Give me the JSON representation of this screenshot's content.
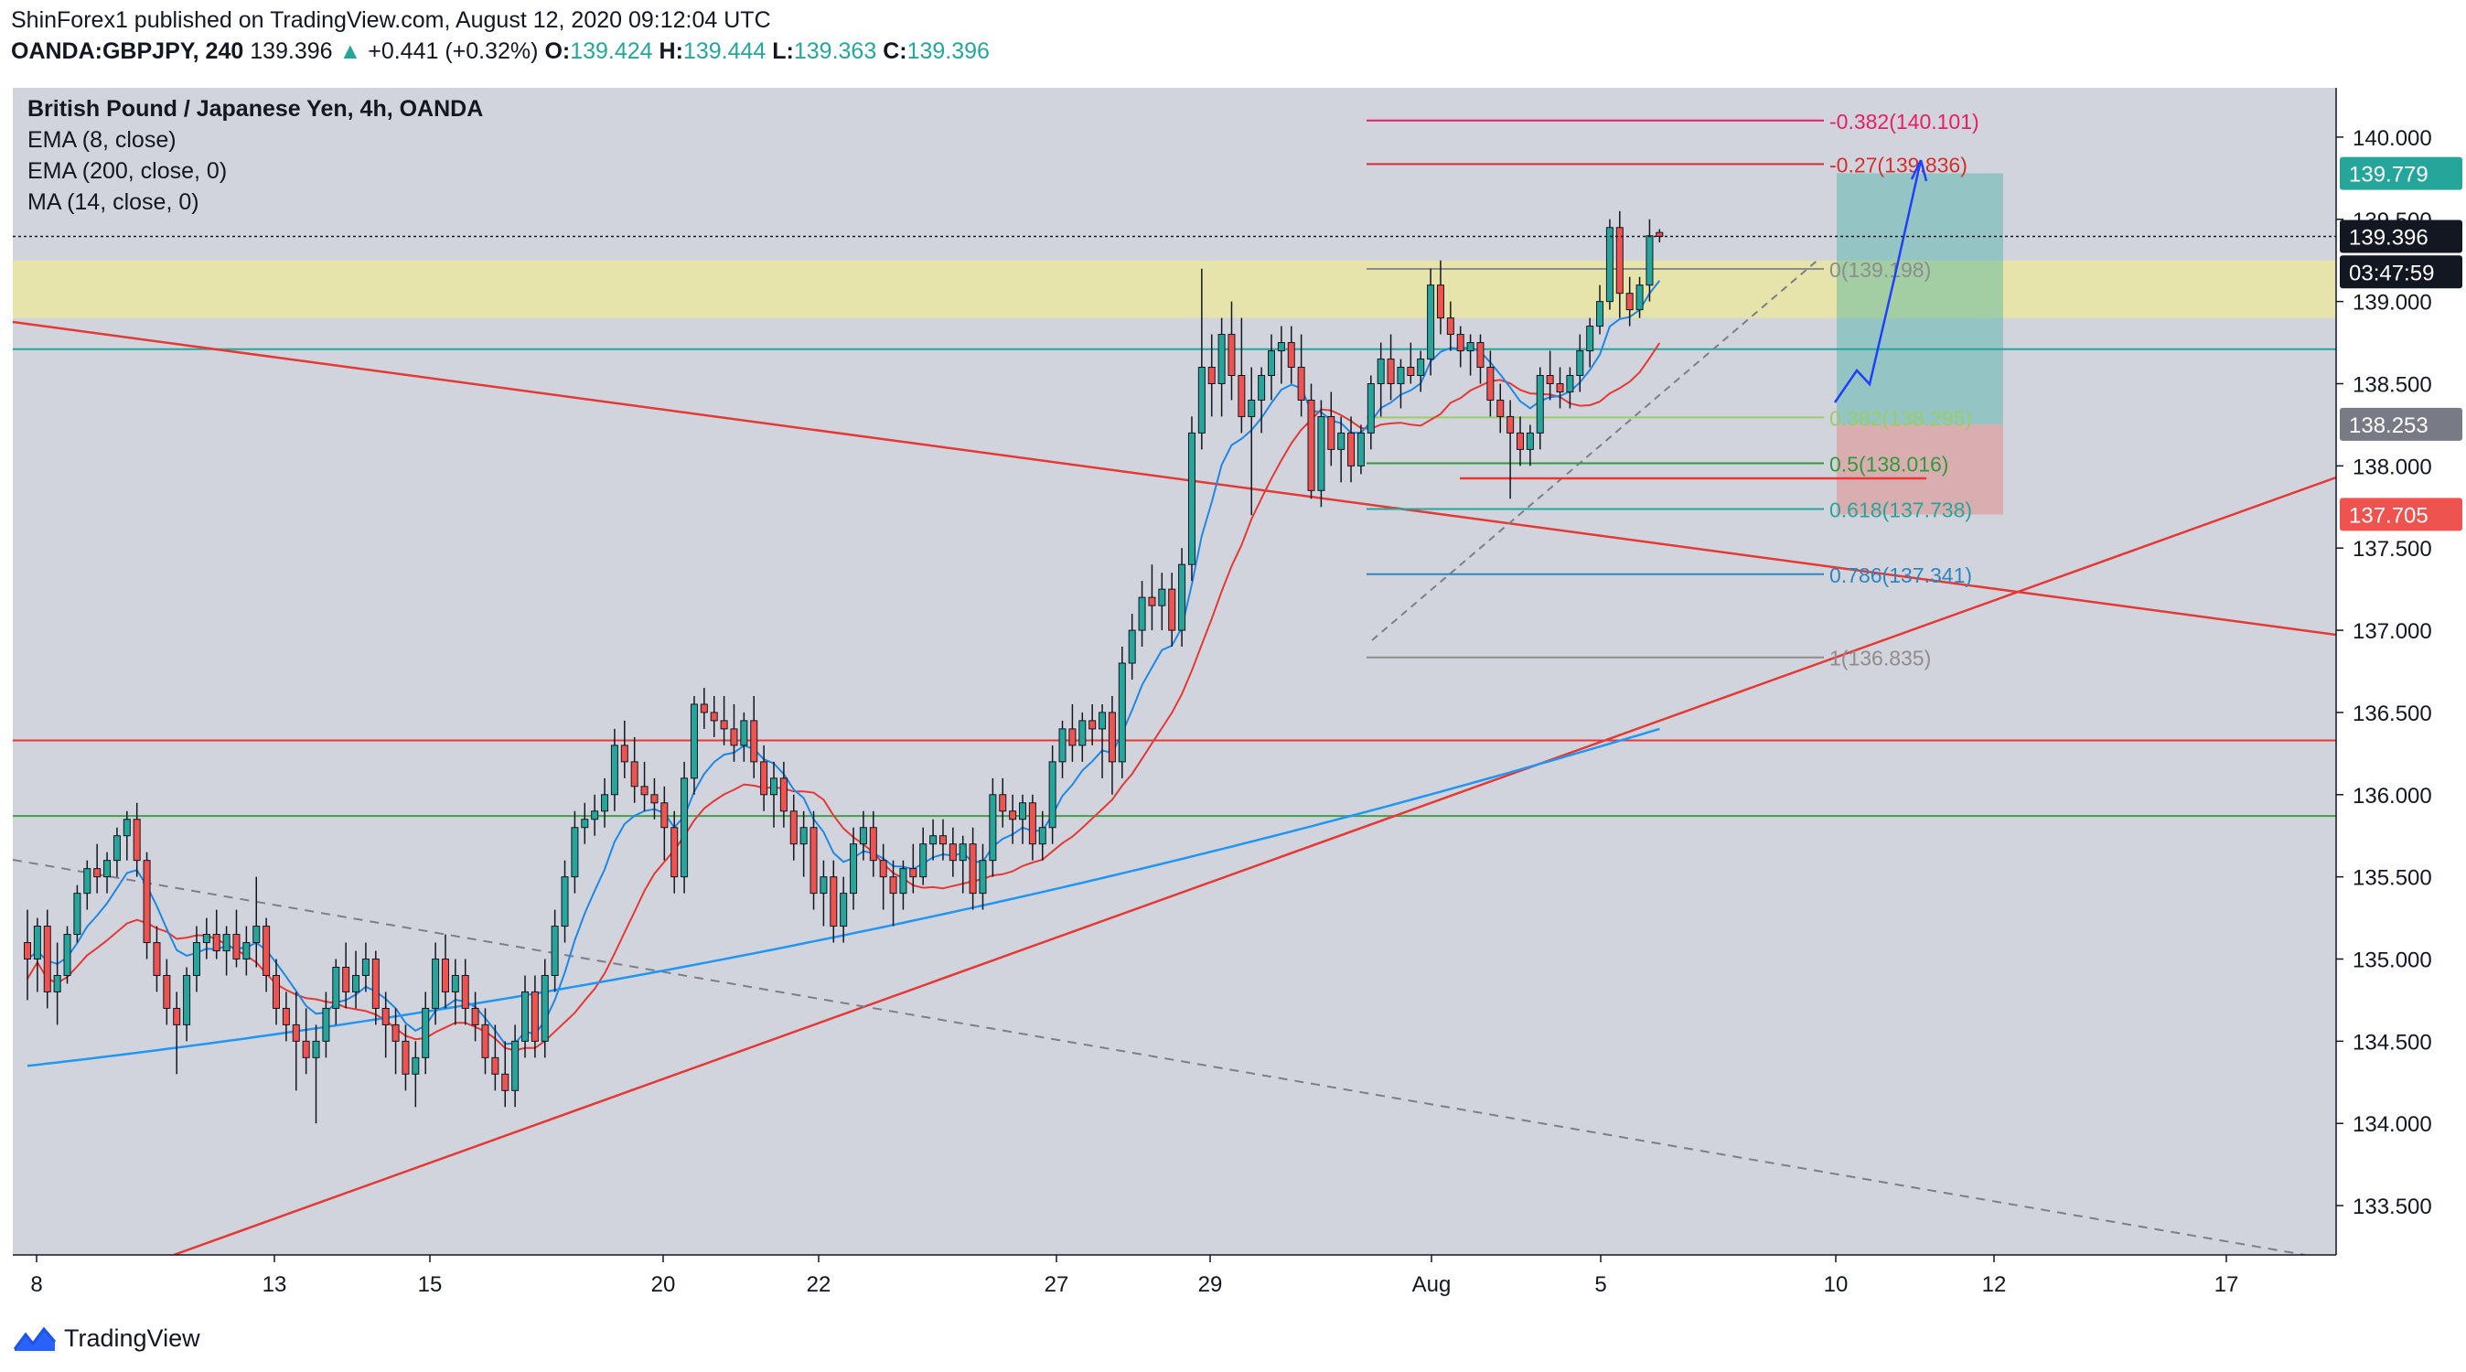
{
  "header": {
    "published": "ShinForex1 published on TradingView.com, August 12, 2020 09:12:04 UTC",
    "symbol": "OANDA:GBPJPY, 240",
    "price": "139.396",
    "change_arrow": "▲",
    "change": "+0.441 (+0.32%)",
    "o_label": "O:",
    "o": "139.424",
    "h_label": "H:",
    "h": "139.444",
    "l_label": "L:",
    "l": "139.363",
    "c_label": "C:",
    "c": "139.396"
  },
  "legend": {
    "title": "British Pound / Japanese Yen, 4h, OANDA",
    "ind1": "EMA (8, close)",
    "ind2": "EMA (200, close, 0)",
    "ind3": "MA (14, close, 0)"
  },
  "footer": {
    "brand": "TradingView",
    "logo_icon": "tradingview-logo-icon"
  },
  "colors": {
    "up": "#26a69a",
    "down": "#ef5350",
    "bg": "#d1d4dc",
    "zone": "#e8e6a4"
  },
  "chart_data": {
    "type": "candlestick",
    "y_range": [
      133.2,
      140.3
    ],
    "y_ticks": [
      "140.000",
      "139.500",
      "139.000",
      "138.500",
      "138.000",
      "137.500",
      "137.000",
      "136.500",
      "136.000",
      "135.500",
      "135.000",
      "134.500",
      "134.000",
      "133.500"
    ],
    "x_ticks": [
      "8",
      "13",
      "15",
      "20",
      "22",
      "27",
      "29",
      "Aug",
      "5",
      "10",
      "12",
      "17"
    ],
    "price_labels": [
      {
        "text": "139.779",
        "value": 139.779,
        "color": "#26a69a"
      },
      {
        "text": "139.396",
        "value": 139.396,
        "color": "#131722"
      },
      {
        "text": "03:47:59",
        "value": 139.18,
        "color": "#131722"
      },
      {
        "text": "138.253",
        "value": 138.253,
        "color": "#787b86"
      },
      {
        "text": "137.705",
        "value": 137.705,
        "color": "#ef5350"
      }
    ],
    "fib_levels": [
      {
        "text": "-0.382(140.101)",
        "value": 140.101,
        "color": "#e91e63"
      },
      {
        "text": "-0.27(139.836)",
        "value": 139.836,
        "color": "#d32f2f"
      },
      {
        "text": "0(139.198)",
        "value": 139.198,
        "color": "#8d8d8d"
      },
      {
        "text": "0.382(138.295)",
        "value": 138.295,
        "color": "#9ccc65"
      },
      {
        "text": "0.5(138.016)",
        "value": 138.016,
        "color": "#2e9c3a"
      },
      {
        "text": "0.618(137.738)",
        "value": 137.738,
        "color": "#26a69a"
      },
      {
        "text": "0.786(137.341)",
        "value": 137.341,
        "color": "#2e86c1"
      },
      {
        "text": "1(136.835)",
        "value": 136.835,
        "color": "#8d8d8d"
      }
    ],
    "resistance_zone": [
      138.9,
      139.25
    ],
    "horizontal_lines": [
      {
        "value": 138.71,
        "color": "#26a69a"
      },
      {
        "value": 136.33,
        "color": "#e53935"
      },
      {
        "value": 135.87,
        "color": "#43a047"
      }
    ],
    "candles_ohlc": [
      [
        135.1,
        135.3,
        134.75,
        135.0
      ],
      [
        135.0,
        135.25,
        134.8,
        135.2
      ],
      [
        135.2,
        135.3,
        134.7,
        134.8
      ],
      [
        134.8,
        135.1,
        134.6,
        134.9
      ],
      [
        134.9,
        135.2,
        134.85,
        135.15
      ],
      [
        135.15,
        135.45,
        135.1,
        135.4
      ],
      [
        135.4,
        135.6,
        135.3,
        135.55
      ],
      [
        135.55,
        135.7,
        135.4,
        135.5
      ],
      [
        135.5,
        135.65,
        135.4,
        135.6
      ],
      [
        135.6,
        135.8,
        135.5,
        135.75
      ],
      [
        135.75,
        135.9,
        135.6,
        135.85
      ],
      [
        135.85,
        135.95,
        135.5,
        135.6
      ],
      [
        135.6,
        135.65,
        135.0,
        135.1
      ],
      [
        135.1,
        135.2,
        134.8,
        134.9
      ],
      [
        134.9,
        135.0,
        134.6,
        134.7
      ],
      [
        134.7,
        134.8,
        134.3,
        134.6
      ],
      [
        134.6,
        134.95,
        134.5,
        134.9
      ],
      [
        134.9,
        135.2,
        134.8,
        135.1
      ],
      [
        135.1,
        135.25,
        135.0,
        135.15
      ],
      [
        135.15,
        135.3,
        135.0,
        135.05
      ],
      [
        135.05,
        135.2,
        134.9,
        135.15
      ],
      [
        135.15,
        135.3,
        134.95,
        135.0
      ],
      [
        135.0,
        135.2,
        134.9,
        135.1
      ],
      [
        135.1,
        135.5,
        134.95,
        135.2
      ],
      [
        135.2,
        135.25,
        134.8,
        134.9
      ],
      [
        134.9,
        135.0,
        134.6,
        134.7
      ],
      [
        134.7,
        134.8,
        134.5,
        134.6
      ],
      [
        134.6,
        134.8,
        134.2,
        134.5
      ],
      [
        134.5,
        134.7,
        134.3,
        134.4
      ],
      [
        134.4,
        134.6,
        134.0,
        134.5
      ],
      [
        134.5,
        134.8,
        134.4,
        134.7
      ],
      [
        134.7,
        135.0,
        134.6,
        134.95
      ],
      [
        134.95,
        135.1,
        134.7,
        134.8
      ],
      [
        134.8,
        135.05,
        134.7,
        134.9
      ],
      [
        134.9,
        135.1,
        134.8,
        135.0
      ],
      [
        135.0,
        135.05,
        134.6,
        134.7
      ],
      [
        134.7,
        134.8,
        134.4,
        134.6
      ],
      [
        134.6,
        134.7,
        134.3,
        134.5
      ],
      [
        134.5,
        134.6,
        134.2,
        134.3
      ],
      [
        134.3,
        134.5,
        134.1,
        134.4
      ],
      [
        134.4,
        134.8,
        134.3,
        134.7
      ],
      [
        134.7,
        135.1,
        134.6,
        135.0
      ],
      [
        135.0,
        135.15,
        134.7,
        134.8
      ],
      [
        134.8,
        135.0,
        134.6,
        134.9
      ],
      [
        134.9,
        135.0,
        134.6,
        134.7
      ],
      [
        134.7,
        134.8,
        134.5,
        134.6
      ],
      [
        134.6,
        134.7,
        134.3,
        134.4
      ],
      [
        134.4,
        134.6,
        134.2,
        134.3
      ],
      [
        134.3,
        134.5,
        134.1,
        134.2
      ],
      [
        134.2,
        134.6,
        134.1,
        134.5
      ],
      [
        134.5,
        134.9,
        134.4,
        134.8
      ],
      [
        134.8,
        134.9,
        134.4,
        134.5
      ],
      [
        134.5,
        135.0,
        134.4,
        134.9
      ],
      [
        134.9,
        135.3,
        134.8,
        135.2
      ],
      [
        135.2,
        135.6,
        135.1,
        135.5
      ],
      [
        135.5,
        135.9,
        135.4,
        135.8
      ],
      [
        135.8,
        135.95,
        135.7,
        135.85
      ],
      [
        135.85,
        136.0,
        135.75,
        135.9
      ],
      [
        135.9,
        136.1,
        135.8,
        136.0
      ],
      [
        136.0,
        136.4,
        135.9,
        136.3
      ],
      [
        136.3,
        136.45,
        136.1,
        136.2
      ],
      [
        136.2,
        136.35,
        135.95,
        136.05
      ],
      [
        136.05,
        136.2,
        135.9,
        136.0
      ],
      [
        136.0,
        136.1,
        135.85,
        135.95
      ],
      [
        135.95,
        136.05,
        135.6,
        135.8
      ],
      [
        135.8,
        135.9,
        135.4,
        135.5
      ],
      [
        135.5,
        136.2,
        135.4,
        136.1
      ],
      [
        136.1,
        136.6,
        136.0,
        136.55
      ],
      [
        136.55,
        136.65,
        136.4,
        136.5
      ],
      [
        136.5,
        136.6,
        136.35,
        136.45
      ],
      [
        136.45,
        136.6,
        136.3,
        136.4
      ],
      [
        136.4,
        136.55,
        136.2,
        136.3
      ],
      [
        136.3,
        136.5,
        136.2,
        136.45
      ],
      [
        136.45,
        136.6,
        136.1,
        136.2
      ],
      [
        136.2,
        136.3,
        135.9,
        136.0
      ],
      [
        136.0,
        136.2,
        135.8,
        136.1
      ],
      [
        136.1,
        136.2,
        135.8,
        135.9
      ],
      [
        135.9,
        136.0,
        135.6,
        135.7
      ],
      [
        135.7,
        135.9,
        135.5,
        135.8
      ],
      [
        135.8,
        135.9,
        135.3,
        135.4
      ],
      [
        135.4,
        135.6,
        135.2,
        135.5
      ],
      [
        135.5,
        135.6,
        135.1,
        135.2
      ],
      [
        135.2,
        135.5,
        135.1,
        135.4
      ],
      [
        135.4,
        135.8,
        135.3,
        135.7
      ],
      [
        135.7,
        135.9,
        135.6,
        135.8
      ],
      [
        135.8,
        135.9,
        135.5,
        135.6
      ],
      [
        135.6,
        135.7,
        135.3,
        135.5
      ],
      [
        135.5,
        135.6,
        135.2,
        135.4
      ],
      [
        135.4,
        135.6,
        135.3,
        135.55
      ],
      [
        135.55,
        135.7,
        135.4,
        135.5
      ],
      [
        135.5,
        135.8,
        135.45,
        135.7
      ],
      [
        135.7,
        135.85,
        135.6,
        135.75
      ],
      [
        135.75,
        135.85,
        135.6,
        135.7
      ],
      [
        135.7,
        135.8,
        135.5,
        135.6
      ],
      [
        135.6,
        135.75,
        135.4,
        135.7
      ],
      [
        135.7,
        135.8,
        135.3,
        135.4
      ],
      [
        135.4,
        135.7,
        135.3,
        135.6
      ],
      [
        135.6,
        136.1,
        135.5,
        136.0
      ],
      [
        136.0,
        136.1,
        135.8,
        135.9
      ],
      [
        135.9,
        136.0,
        135.7,
        135.85
      ],
      [
        135.85,
        136.0,
        135.7,
        135.95
      ],
      [
        135.95,
        136.0,
        135.6,
        135.7
      ],
      [
        135.7,
        135.9,
        135.6,
        135.8
      ],
      [
        135.8,
        136.3,
        135.7,
        136.2
      ],
      [
        136.2,
        136.45,
        136.1,
        136.4
      ],
      [
        136.4,
        136.55,
        136.2,
        136.3
      ],
      [
        136.3,
        136.5,
        136.2,
        136.45
      ],
      [
        136.45,
        136.55,
        136.3,
        136.4
      ],
      [
        136.4,
        136.55,
        136.1,
        136.5
      ],
      [
        136.5,
        136.6,
        136.0,
        136.2
      ],
      [
        136.2,
        136.9,
        136.1,
        136.8
      ],
      [
        136.8,
        137.1,
        136.7,
        137.0
      ],
      [
        137.0,
        137.3,
        136.9,
        137.2
      ],
      [
        137.2,
        137.4,
        137.0,
        137.15
      ],
      [
        137.15,
        137.35,
        137.0,
        137.25
      ],
      [
        137.25,
        137.35,
        136.9,
        137.0
      ],
      [
        137.0,
        137.5,
        136.9,
        137.4
      ],
      [
        137.4,
        138.3,
        137.3,
        138.2
      ],
      [
        138.2,
        139.2,
        138.1,
        138.6
      ],
      [
        138.6,
        138.8,
        138.3,
        138.5
      ],
      [
        138.5,
        138.9,
        138.3,
        138.8
      ],
      [
        138.8,
        139.0,
        138.4,
        138.55
      ],
      [
        138.55,
        138.9,
        138.2,
        138.3
      ],
      [
        138.3,
        138.6,
        137.7,
        138.4
      ],
      [
        138.4,
        138.6,
        138.2,
        138.55
      ],
      [
        138.55,
        138.8,
        138.4,
        138.7
      ],
      [
        138.7,
        138.85,
        138.5,
        138.75
      ],
      [
        138.75,
        138.85,
        138.5,
        138.6
      ],
      [
        138.6,
        138.8,
        138.3,
        138.4
      ],
      [
        138.4,
        138.5,
        137.8,
        137.85
      ],
      [
        137.85,
        138.4,
        137.75,
        138.3
      ],
      [
        138.3,
        138.45,
        138.0,
        138.1
      ],
      [
        138.1,
        138.3,
        137.9,
        138.2
      ],
      [
        138.2,
        138.3,
        137.9,
        138.0
      ],
      [
        138.0,
        138.25,
        137.95,
        138.2
      ],
      [
        138.2,
        138.55,
        138.1,
        138.5
      ],
      [
        138.5,
        138.75,
        138.3,
        138.65
      ],
      [
        138.65,
        138.8,
        138.4,
        138.5
      ],
      [
        138.5,
        138.65,
        138.35,
        138.6
      ],
      [
        138.6,
        138.75,
        138.5,
        138.55
      ],
      [
        138.55,
        138.7,
        138.45,
        138.65
      ],
      [
        138.65,
        139.2,
        138.55,
        139.1
      ],
      [
        139.1,
        139.25,
        138.8,
        138.9
      ],
      [
        138.9,
        139.0,
        138.7,
        138.8
      ],
      [
        138.8,
        138.85,
        138.6,
        138.7
      ],
      [
        138.7,
        138.8,
        138.55,
        138.75
      ],
      [
        138.75,
        138.8,
        138.5,
        138.6
      ],
      [
        138.6,
        138.7,
        138.3,
        138.4
      ],
      [
        138.4,
        138.5,
        138.2,
        138.3
      ],
      [
        138.3,
        138.4,
        137.8,
        138.2
      ],
      [
        138.2,
        138.3,
        138.0,
        138.1
      ],
      [
        138.1,
        138.25,
        138.0,
        138.2
      ],
      [
        138.2,
        138.6,
        138.1,
        138.55
      ],
      [
        138.55,
        138.7,
        138.4,
        138.5
      ],
      [
        138.5,
        138.6,
        138.35,
        138.45
      ],
      [
        138.45,
        138.6,
        138.35,
        138.55
      ],
      [
        138.55,
        138.8,
        138.45,
        138.7
      ],
      [
        138.7,
        138.9,
        138.6,
        138.85
      ],
      [
        138.85,
        139.1,
        138.8,
        139.0
      ],
      [
        139.0,
        139.5,
        138.95,
        139.45
      ],
      [
        139.45,
        139.55,
        138.9,
        139.05
      ],
      [
        139.05,
        139.15,
        138.85,
        138.95
      ],
      [
        138.95,
        139.15,
        138.9,
        139.1
      ],
      [
        139.1,
        139.5,
        139.0,
        139.4
      ],
      [
        139.42,
        139.44,
        139.36,
        139.396
      ]
    ],
    "candle_x_start": 30,
    "candle_step": 10.88
  }
}
